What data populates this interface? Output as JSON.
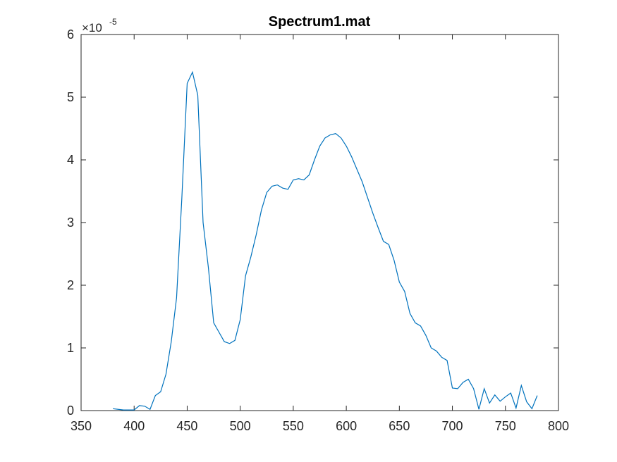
{
  "chart_data": {
    "type": "line",
    "title": "Spectrum1.mat",
    "xlabel": "",
    "ylabel": "",
    "y_exponent_base": "×10",
    "y_exponent_power": "-5",
    "xlim": [
      350,
      800
    ],
    "ylim": [
      0,
      6
    ],
    "xticks": [
      350,
      400,
      450,
      500,
      550,
      600,
      650,
      700,
      750,
      800
    ],
    "yticks": [
      0,
      1,
      2,
      3,
      4,
      5,
      6
    ],
    "grid": false,
    "line_color": "#0072BD",
    "x": [
      380,
      385,
      390,
      395,
      400,
      405,
      410,
      415,
      420,
      425,
      430,
      435,
      440,
      445,
      450,
      455,
      460,
      465,
      470,
      475,
      480,
      485,
      490,
      495,
      500,
      505,
      510,
      515,
      520,
      525,
      530,
      535,
      540,
      545,
      550,
      555,
      560,
      565,
      570,
      575,
      580,
      585,
      590,
      595,
      600,
      605,
      610,
      615,
      620,
      625,
      630,
      635,
      640,
      645,
      650,
      655,
      660,
      665,
      670,
      675,
      680,
      685,
      690,
      695,
      700,
      705,
      710,
      715,
      720,
      725,
      730,
      735,
      740,
      745,
      750,
      755,
      760,
      765,
      770,
      775,
      780
    ],
    "y": [
      0.03,
      0.02,
      0.01,
      0.01,
      0.01,
      0.08,
      0.07,
      0.02,
      0.24,
      0.3,
      0.58,
      1.1,
      1.8,
      3.4,
      5.22,
      5.4,
      5.03,
      3.0,
      2.28,
      1.4,
      1.25,
      1.1,
      1.07,
      1.12,
      1.45,
      2.15,
      2.45,
      2.8,
      3.2,
      3.48,
      3.58,
      3.6,
      3.55,
      3.53,
      3.68,
      3.7,
      3.68,
      3.76,
      4.0,
      4.22,
      4.35,
      4.4,
      4.42,
      4.35,
      4.22,
      4.05,
      3.85,
      3.65,
      3.4,
      3.15,
      2.92,
      2.7,
      2.65,
      2.4,
      2.05,
      1.9,
      1.55,
      1.4,
      1.35,
      1.2,
      1.0,
      0.95,
      0.85,
      0.8,
      0.36,
      0.35,
      0.45,
      0.5,
      0.35,
      0.02,
      0.35,
      0.12,
      0.25,
      0.15,
      0.22,
      0.28,
      0.04,
      0.4,
      0.14,
      0.03,
      0.24
    ]
  }
}
